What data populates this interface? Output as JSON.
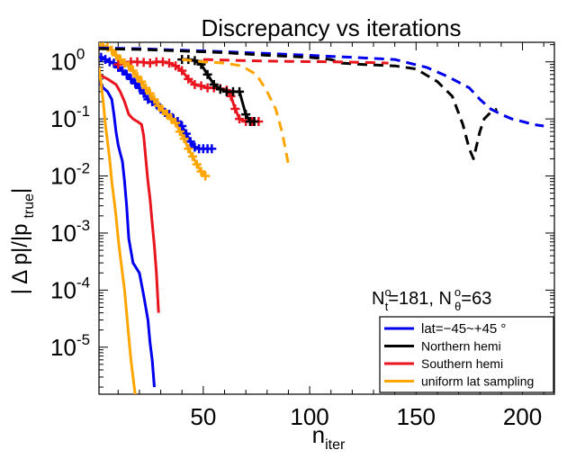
{
  "chart_data": {
    "type": "line",
    "title": "Discrepancy vs iterations",
    "xlabel": {
      "main": "n",
      "sub": "iter"
    },
    "ylabel": {
      "prefix": "| Δ p|/|p",
      "sub": "true",
      "suffix": "|"
    },
    "xscale": "linear",
    "yscale": "log",
    "xlim": [
      1,
      215
    ],
    "ylim": [
      1.5e-06,
      2.2
    ],
    "xticks": [
      50,
      100,
      150,
      200
    ],
    "xtick_labels": [
      "50",
      "100",
      "150",
      "200"
    ],
    "yticks": [
      1,
      0.1,
      0.01,
      0.001,
      0.0001,
      1e-05
    ],
    "ytick_labels": [
      {
        "base": "10",
        "exp": "0"
      },
      {
        "base": "10",
        "exp": "-1"
      },
      {
        "base": "10",
        "exp": "-2"
      },
      {
        "base": "10",
        "exp": "-3"
      },
      {
        "base": "10",
        "exp": "-4"
      },
      {
        "base": "10",
        "exp": "-5"
      }
    ],
    "annotation": {
      "part1_base": "N",
      "part1_sub": "t",
      "part1_sup": "o",
      "part1_val": "=181, N",
      "part2_sub": "θ",
      "part2_sup": "o",
      "part2_val": "=63"
    },
    "legend": {
      "position": "bottom-right",
      "entries": [
        {
          "label": "lat=−45~+45 °",
          "color": "#0000ee"
        },
        {
          "label": "Northern hemi",
          "color": "#000000"
        },
        {
          "label": "Southern hemi",
          "color": "#e8141e"
        },
        {
          "label": "uniform lat sampling",
          "color": "#ffa500"
        }
      ]
    },
    "series": [
      {
        "name": "blue-solid",
        "color": "#0000ee",
        "style": "solid",
        "points": [
          [
            1,
            0.45
          ],
          [
            3,
            0.35
          ],
          [
            5,
            0.3
          ],
          [
            7,
            0.22
          ],
          [
            8,
            0.12
          ],
          [
            9,
            0.06
          ],
          [
            10,
            0.035
          ],
          [
            11,
            0.025
          ],
          [
            12,
            0.018
          ],
          [
            13,
            0.008
          ],
          [
            14,
            0.003
          ],
          [
            15,
            0.0008
          ],
          [
            17,
            0.0003
          ],
          [
            20,
            0.0002
          ],
          [
            22,
            8e-05
          ],
          [
            24,
            3e-05
          ],
          [
            25,
            1.2e-05
          ],
          [
            26,
            6e-06
          ],
          [
            27,
            2e-06
          ]
        ]
      },
      {
        "name": "red-solid",
        "color": "#e8141e",
        "style": "solid",
        "points": [
          [
            1,
            0.6
          ],
          [
            5,
            0.5
          ],
          [
            9,
            0.4
          ],
          [
            11,
            0.3
          ],
          [
            13,
            0.2
          ],
          [
            15,
            0.12
          ],
          [
            17,
            0.1
          ],
          [
            19,
            0.09
          ],
          [
            21,
            0.08
          ],
          [
            22,
            0.05
          ],
          [
            23,
            0.02
          ],
          [
            24,
            0.008
          ],
          [
            25,
            0.004
          ],
          [
            26,
            0.0015
          ],
          [
            27,
            0.0006
          ],
          [
            28,
            0.0002
          ],
          [
            29,
            4e-05
          ]
        ]
      },
      {
        "name": "orange-solid",
        "color": "#ffa500",
        "style": "solid",
        "points": [
          [
            1,
            0.8
          ],
          [
            2,
            0.4
          ],
          [
            3,
            0.2
          ],
          [
            4,
            0.08
          ],
          [
            5,
            0.04
          ],
          [
            6,
            0.02
          ],
          [
            7,
            0.008
          ],
          [
            8,
            0.004
          ],
          [
            9,
            0.002
          ],
          [
            10,
            0.0008
          ],
          [
            11,
            0.0004
          ],
          [
            12,
            0.0002
          ],
          [
            13,
            0.0001
          ],
          [
            14,
            4e-05
          ],
          [
            15,
            1.5e-05
          ],
          [
            16,
            6e-06
          ],
          [
            17,
            3e-06
          ],
          [
            18,
            1.5e-06
          ]
        ]
      },
      {
        "name": "blue-cross",
        "color": "#0000ee",
        "style": "cross",
        "points": [
          [
            2,
            1.2
          ],
          [
            4,
            1.1
          ],
          [
            6,
            1.0
          ],
          [
            8,
            0.95
          ],
          [
            10,
            0.8
          ],
          [
            12,
            0.7
          ],
          [
            14,
            0.6
          ],
          [
            16,
            0.5
          ],
          [
            18,
            0.42
          ],
          [
            20,
            0.35
          ],
          [
            22,
            0.28
          ],
          [
            24,
            0.22
          ],
          [
            26,
            0.2
          ],
          [
            28,
            0.18
          ],
          [
            30,
            0.15
          ],
          [
            32,
            0.13
          ],
          [
            34,
            0.12
          ],
          [
            36,
            0.1
          ],
          [
            38,
            0.09
          ],
          [
            40,
            0.075
          ],
          [
            42,
            0.055
          ],
          [
            44,
            0.04
          ],
          [
            46,
            0.032
          ],
          [
            48,
            0.03
          ],
          [
            50,
            0.03
          ],
          [
            52,
            0.03
          ],
          [
            54,
            0.03
          ]
        ]
      },
      {
        "name": "red-cross",
        "color": "#e8141e",
        "style": "cross",
        "points": [
          [
            10,
            0.9
          ],
          [
            13,
            0.95
          ],
          [
            16,
            1.0
          ],
          [
            19,
            1.0
          ],
          [
            22,
            0.98
          ],
          [
            25,
            0.95
          ],
          [
            28,
            1.0
          ],
          [
            31,
            1.0
          ],
          [
            34,
            0.95
          ],
          [
            37,
            0.85
          ],
          [
            40,
            0.7
          ],
          [
            43,
            0.5
          ],
          [
            46,
            0.4
          ],
          [
            49,
            0.38
          ],
          [
            52,
            0.35
          ],
          [
            55,
            0.35
          ],
          [
            58,
            0.34
          ],
          [
            61,
            0.32
          ],
          [
            63,
            0.25
          ],
          [
            65,
            0.15
          ],
          [
            67,
            0.1
          ],
          [
            70,
            0.09
          ],
          [
            73,
            0.09
          ],
          [
            76,
            0.09
          ]
        ]
      },
      {
        "name": "black-cross",
        "color": "#000000",
        "style": "cross",
        "points": [
          [
            40,
            1.1
          ],
          [
            43,
            1.1
          ],
          [
            46,
            1.05
          ],
          [
            49,
            0.9
          ],
          [
            52,
            0.6
          ],
          [
            55,
            0.4
          ],
          [
            58,
            0.33
          ],
          [
            61,
            0.3
          ],
          [
            64,
            0.3
          ],
          [
            67,
            0.3
          ],
          [
            70,
            0.12
          ],
          [
            72,
            0.09
          ],
          [
            74,
            0.09
          ]
        ]
      },
      {
        "name": "orange-cross",
        "color": "#ffa500",
        "style": "cross",
        "points": [
          [
            1,
            2.0
          ],
          [
            3,
            1.9
          ],
          [
            5,
            1.8
          ],
          [
            7,
            1.6
          ],
          [
            9,
            1.3
          ],
          [
            11,
            1.1
          ],
          [
            13,
            0.95
          ],
          [
            15,
            0.85
          ],
          [
            17,
            0.7
          ],
          [
            19,
            0.55
          ],
          [
            21,
            0.45
          ],
          [
            23,
            0.35
          ],
          [
            25,
            0.28
          ],
          [
            27,
            0.22
          ],
          [
            29,
            0.17
          ],
          [
            31,
            0.14
          ],
          [
            33,
            0.12
          ],
          [
            35,
            0.1
          ],
          [
            37,
            0.085
          ],
          [
            39,
            0.06
          ],
          [
            41,
            0.045
          ],
          [
            43,
            0.03
          ],
          [
            45,
            0.022
          ],
          [
            47,
            0.016
          ],
          [
            49,
            0.012
          ],
          [
            51,
            0.01
          ]
        ]
      },
      {
        "name": "blue-dashed",
        "color": "#0000ee",
        "style": "dashed",
        "points": [
          [
            1,
            1.75
          ],
          [
            20,
            1.7
          ],
          [
            40,
            1.6
          ],
          [
            60,
            1.5
          ],
          [
            80,
            1.4
          ],
          [
            100,
            1.3
          ],
          [
            120,
            1.2
          ],
          [
            140,
            1.1
          ],
          [
            155,
            0.8
          ],
          [
            165,
            0.55
          ],
          [
            175,
            0.35
          ],
          [
            180,
            0.22
          ],
          [
            185,
            0.15
          ],
          [
            190,
            0.12
          ],
          [
            195,
            0.1
          ],
          [
            200,
            0.09
          ],
          [
            205,
            0.08
          ],
          [
            210,
            0.075
          ]
        ]
      },
      {
        "name": "black-dashed",
        "color": "#000000",
        "style": "dashed",
        "points": [
          [
            1,
            1.7
          ],
          [
            20,
            1.65
          ],
          [
            40,
            1.55
          ],
          [
            60,
            1.45
          ],
          [
            80,
            1.3
          ],
          [
            100,
            1.2
          ],
          [
            110,
            1.1
          ],
          [
            115,
            0.95
          ],
          [
            125,
            0.9
          ],
          [
            140,
            0.85
          ],
          [
            150,
            0.75
          ],
          [
            160,
            0.45
          ],
          [
            167,
            0.25
          ],
          [
            172,
            0.08
          ],
          [
            175,
            0.03
          ],
          [
            177,
            0.02
          ],
          [
            180,
            0.06
          ],
          [
            182,
            0.1
          ],
          [
            185,
            0.13
          ],
          [
            188,
            0.15
          ]
        ]
      },
      {
        "name": "red-dashed",
        "color": "#e8141e",
        "style": "dashed",
        "points": [
          [
            50,
            1.1
          ],
          [
            70,
            1.05
          ],
          [
            90,
            1.02
          ],
          [
            110,
            1.0
          ],
          [
            125,
            0.98
          ],
          [
            137,
            0.95
          ]
        ]
      },
      {
        "name": "orange-dashed",
        "color": "#ffa500",
        "style": "dashed",
        "points": [
          [
            40,
            1.1
          ],
          [
            50,
            1.0
          ],
          [
            60,
            0.95
          ],
          [
            68,
            0.85
          ],
          [
            75,
            0.6
          ],
          [
            80,
            0.3
          ],
          [
            84,
            0.15
          ],
          [
            87,
            0.06
          ],
          [
            89,
            0.025
          ],
          [
            90,
            0.016
          ],
          [
            92,
            0.017
          ]
        ]
      }
    ]
  }
}
